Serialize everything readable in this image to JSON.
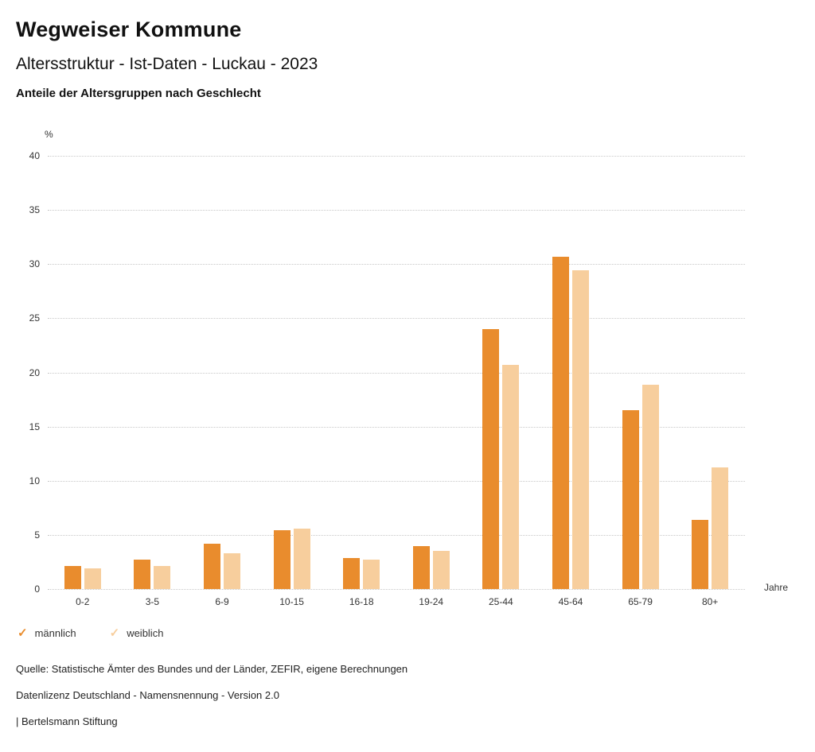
{
  "page": {
    "title": "Wegweiser Kommune",
    "subtitle": "Altersstruktur - Ist-Daten - Luckau - 2023",
    "chart_heading": "Anteile der Altersgruppen nach Geschlecht"
  },
  "chart_data": {
    "type": "bar",
    "title": "Anteile der Altersgruppen nach Geschlecht",
    "categories": [
      "0-2",
      "3-5",
      "6-9",
      "10-15",
      "16-18",
      "19-24",
      "25-44",
      "45-64",
      "65-79",
      "80+"
    ],
    "series": [
      {
        "name": "männlich",
        "color": "#E98C2D",
        "values": [
          2.1,
          2.7,
          4.2,
          5.4,
          2.9,
          4.0,
          24.0,
          30.7,
          16.5,
          6.4
        ]
      },
      {
        "name": "weiblich",
        "color": "#F7CE9D",
        "values": [
          1.9,
          2.1,
          3.3,
          5.6,
          2.7,
          3.5,
          20.7,
          29.4,
          18.9,
          11.2
        ]
      }
    ],
    "ylabel": "%",
    "xlabel": "Jahre",
    "ylim": [
      0,
      40
    ],
    "ytick_step": 5,
    "grid": true,
    "legend_position": "bottom"
  },
  "footer": {
    "source": "Quelle: Statistische Ämter des Bundes und der Länder, ZEFIR, eigene Berechnungen",
    "license": "Datenlizenz Deutschland - Namensnennung - Version 2.0",
    "attribution": "| Bertelsmann Stiftung"
  }
}
